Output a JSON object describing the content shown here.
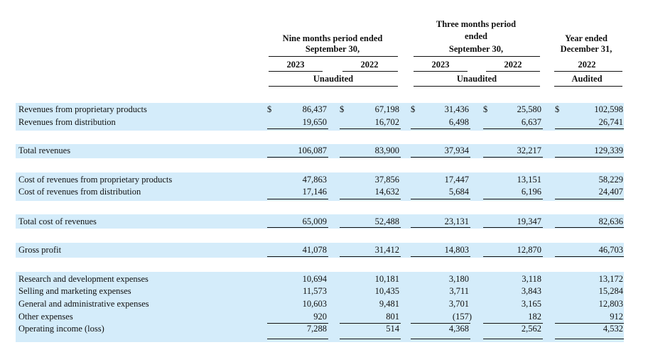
{
  "header": {
    "nine_months": {
      "line1": "Nine months period ended",
      "line2": "September 30,",
      "year1": "2023",
      "year2": "2022",
      "status": "Unaudited"
    },
    "three_months": {
      "line1": "Three months period",
      "line2": "ended",
      "line3": "September 30,",
      "year1": "2023",
      "year2": "2022",
      "status": "Unaudited"
    },
    "year_ended": {
      "line1": "Year ended",
      "line2": "December 31,",
      "year": "2022",
      "status": "Audited"
    }
  },
  "currency_symbol": "$",
  "rows": [
    {
      "label": "Revenues from proprietary products",
      "values": [
        "86,437",
        "67,198",
        "31,436",
        "25,580",
        "102,598"
      ]
    },
    {
      "label": "Revenues from distribution",
      "values": [
        "19,650",
        "16,702",
        "6,498",
        "6,637",
        "26,741"
      ]
    },
    {
      "label": "Total revenues",
      "values": [
        "106,087",
        "83,900",
        "37,934",
        "32,217",
        "129,339"
      ]
    },
    {
      "label": "Cost of revenues from proprietary products",
      "values": [
        "47,863",
        "37,856",
        "17,447",
        "13,151",
        "58,229"
      ]
    },
    {
      "label": "Cost of revenues from distribution",
      "values": [
        "17,146",
        "14,632",
        "5,684",
        "6,196",
        "24,407"
      ]
    },
    {
      "label": "Total cost of revenues",
      "values": [
        "65,009",
        "52,488",
        "23,131",
        "19,347",
        "82,636"
      ]
    },
    {
      "label": "Gross profit",
      "values": [
        "41,078",
        "31,412",
        "14,803",
        "12,870",
        "46,703"
      ]
    },
    {
      "label": "Research and development expenses",
      "values": [
        "10,694",
        "10,181",
        "3,180",
        "3,118",
        "13,172"
      ]
    },
    {
      "label": "Selling and marketing expenses",
      "values": [
        "11,573",
        "10,435",
        "3,711",
        "3,843",
        "15,284"
      ]
    },
    {
      "label": "General and administrative expenses",
      "values": [
        "10,603",
        "9,481",
        "3,701",
        "3,165",
        "12,803"
      ]
    },
    {
      "label": "Other expenses",
      "values": [
        "920",
        "801",
        "(157)",
        "182",
        "912"
      ]
    },
    {
      "label": "Operating income (loss)",
      "values": [
        "7,288",
        "514",
        "4,368",
        "2,562",
        "4,532"
      ]
    }
  ]
}
